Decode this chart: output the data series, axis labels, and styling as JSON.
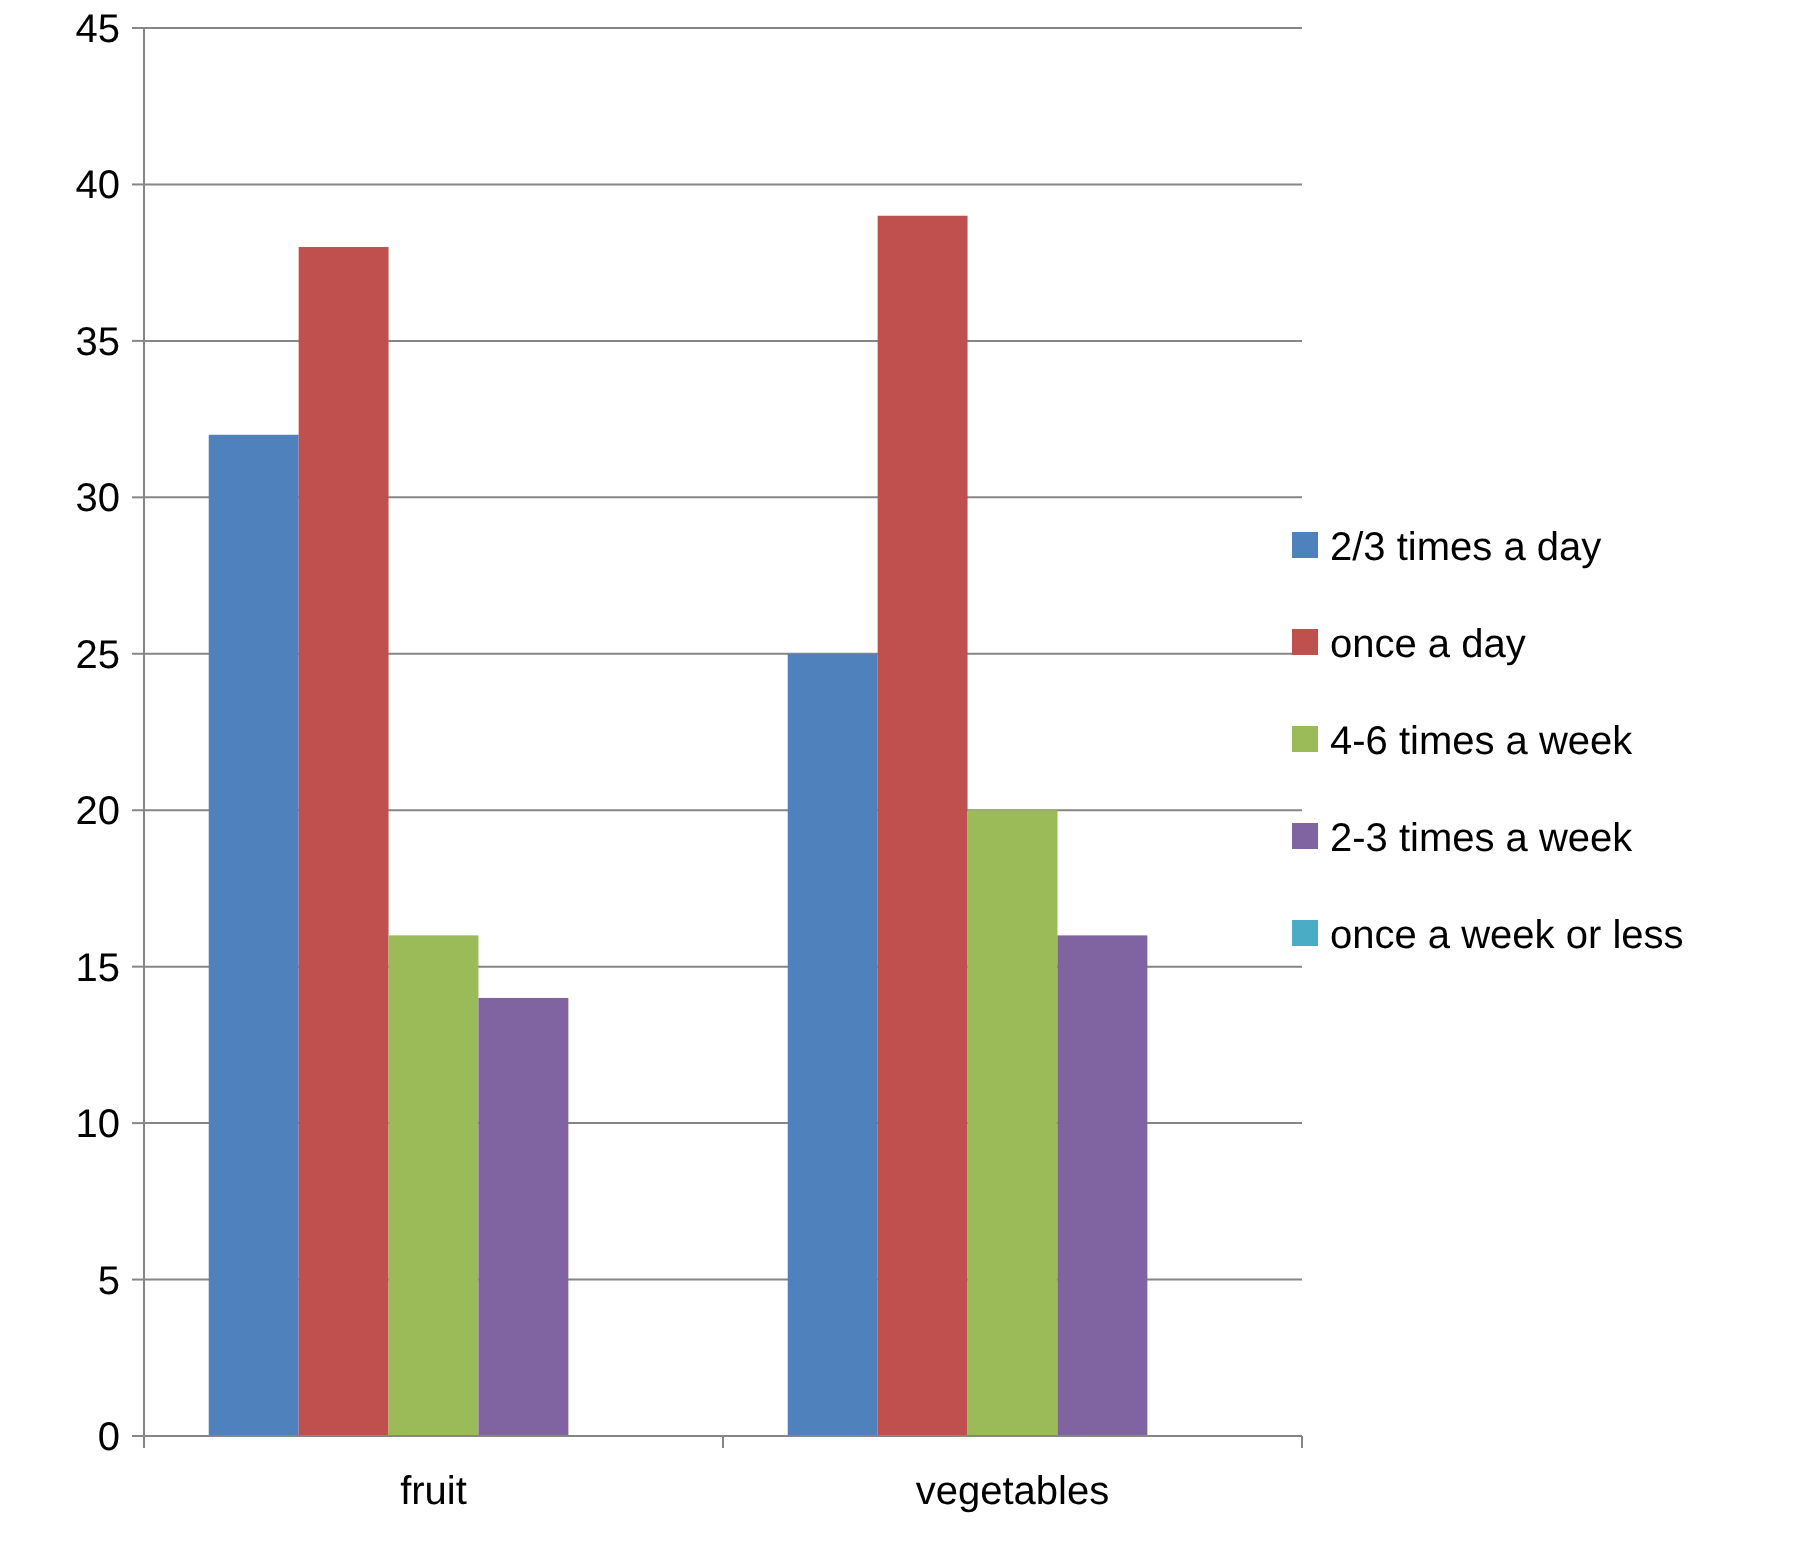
{
  "chart_data": {
    "type": "bar",
    "categories": [
      "fruit",
      "vegetables"
    ],
    "series": [
      {
        "name": "2/3 times a day",
        "color": "#4f81bd",
        "values": [
          32,
          25
        ]
      },
      {
        "name": "once a day",
        "color": "#c0504d",
        "values": [
          38,
          39
        ]
      },
      {
        "name": "4-6 times a week",
        "color": "#9bbb59",
        "values": [
          16,
          20
        ]
      },
      {
        "name": "2-3 times a week",
        "color": "#8064a2",
        "values": [
          14,
          16
        ]
      },
      {
        "name": "once a week or less",
        "color": "#4bacc6",
        "values": [
          0,
          0
        ]
      }
    ],
    "ylim": [
      0,
      45
    ],
    "yticks": [
      0,
      5,
      10,
      15,
      20,
      25,
      30,
      35,
      40,
      45
    ],
    "grid": "y",
    "legend": "right"
  }
}
